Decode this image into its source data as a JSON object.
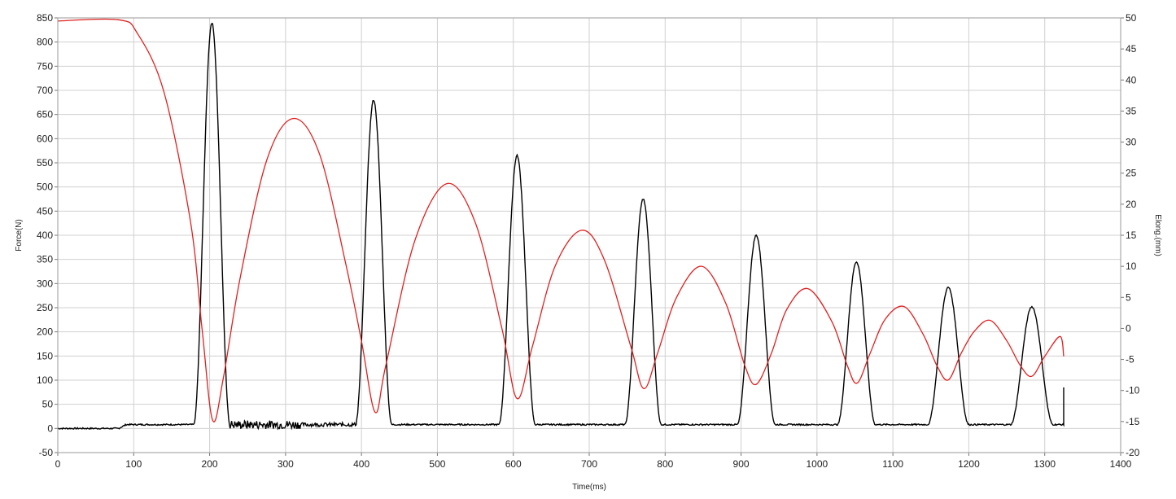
{
  "chart_data": {
    "type": "line",
    "title": "",
    "xlabel": "Time(ms)",
    "ylabel": "Force(N)",
    "y2label": "Elong.(mm)",
    "xlim": [
      0,
      1400
    ],
    "ylim": [
      -50,
      850
    ],
    "y2lim": [
      -20,
      50
    ],
    "grid": true,
    "legend": "none",
    "x_ticks": [
      "0",
      "100",
      "200",
      "300",
      "400",
      "500",
      "600",
      "700",
      "800",
      "900",
      "1000",
      "1100",
      "1200",
      "1300",
      "1400"
    ],
    "y_ticks": [
      "-50",
      "0",
      "50",
      "100",
      "150",
      "200",
      "250",
      "300",
      "350",
      "400",
      "450",
      "500",
      "550",
      "600",
      "650",
      "700",
      "750",
      "800",
      "850"
    ],
    "y2_ticks": [
      "-20",
      "-15",
      "-10",
      "-5",
      "0",
      "5",
      "10",
      "15",
      "20",
      "25",
      "30",
      "35",
      "40",
      "45",
      "50"
    ],
    "colors": {
      "force": "#000000",
      "elongation": "#e02020",
      "grid": "#d0d0d0"
    },
    "series": [
      {
        "name": "",
        "axis": "left",
        "color": "#000000",
        "baseline": [
          {
            "x": 0,
            "y": 0
          },
          {
            "x": 80,
            "y": 0
          },
          {
            "x": 90,
            "y": 8
          },
          {
            "x": 1330,
            "y": 8
          }
        ],
        "noise_range": [
          225,
          400
        ],
        "peaks": [
          {
            "x": 203,
            "y": 840,
            "halfwidth": 24
          },
          {
            "x": 416,
            "y": 680,
            "halfwidth": 24
          },
          {
            "x": 605,
            "y": 565,
            "halfwidth": 24
          },
          {
            "x": 771,
            "y": 475,
            "halfwidth": 24
          },
          {
            "x": 920,
            "y": 400,
            "halfwidth": 25
          },
          {
            "x": 1052,
            "y": 345,
            "halfwidth": 25
          },
          {
            "x": 1173,
            "y": 292,
            "halfwidth": 27
          },
          {
            "x": 1283,
            "y": 252,
            "halfwidth": 28
          }
        ],
        "end": {
          "x": 1325,
          "y": 85
        }
      },
      {
        "name": "",
        "axis": "right",
        "color": "#e02020",
        "points": [
          {
            "x": 0,
            "y": 49.5
          },
          {
            "x": 80,
            "y": 49.7
          },
          {
            "x": 105,
            "y": 47.5
          },
          {
            "x": 140,
            "y": 38
          },
          {
            "x": 175,
            "y": 17
          },
          {
            "x": 190,
            "y": 0
          },
          {
            "x": 204,
            "y": -14.8
          },
          {
            "x": 218,
            "y": -8
          },
          {
            "x": 240,
            "y": 8
          },
          {
            "x": 275,
            "y": 27
          },
          {
            "x": 310,
            "y": 33.8
          },
          {
            "x": 345,
            "y": 28
          },
          {
            "x": 380,
            "y": 10
          },
          {
            "x": 400,
            "y": -2
          },
          {
            "x": 418,
            "y": -13.5
          },
          {
            "x": 432,
            "y": -6
          },
          {
            "x": 470,
            "y": 14
          },
          {
            "x": 512,
            "y": 23.3
          },
          {
            "x": 550,
            "y": 17
          },
          {
            "x": 585,
            "y": 0
          },
          {
            "x": 605,
            "y": -11.3
          },
          {
            "x": 625,
            "y": -3
          },
          {
            "x": 655,
            "y": 10
          },
          {
            "x": 690,
            "y": 15.8
          },
          {
            "x": 720,
            "y": 11
          },
          {
            "x": 755,
            "y": -3
          },
          {
            "x": 772,
            "y": -9.7
          },
          {
            "x": 790,
            "y": -4
          },
          {
            "x": 815,
            "y": 5
          },
          {
            "x": 848,
            "y": 10
          },
          {
            "x": 880,
            "y": 4
          },
          {
            "x": 905,
            "y": -6
          },
          {
            "x": 920,
            "y": -9
          },
          {
            "x": 940,
            "y": -4
          },
          {
            "x": 960,
            "y": 3
          },
          {
            "x": 988,
            "y": 6.4
          },
          {
            "x": 1020,
            "y": 1
          },
          {
            "x": 1040,
            "y": -6
          },
          {
            "x": 1053,
            "y": -8.8
          },
          {
            "x": 1070,
            "y": -4
          },
          {
            "x": 1090,
            "y": 1.5
          },
          {
            "x": 1115,
            "y": 3.5
          },
          {
            "x": 1140,
            "y": -1
          },
          {
            "x": 1158,
            "y": -6
          },
          {
            "x": 1173,
            "y": -8.3
          },
          {
            "x": 1190,
            "y": -4
          },
          {
            "x": 1207,
            "y": -0.5
          },
          {
            "x": 1228,
            "y": 1.3
          },
          {
            "x": 1250,
            "y": -2
          },
          {
            "x": 1268,
            "y": -6
          },
          {
            "x": 1283,
            "y": -7.7
          },
          {
            "x": 1300,
            "y": -4.5
          },
          {
            "x": 1320,
            "y": -1.3
          },
          {
            "x": 1325,
            "y": -4.5
          }
        ]
      }
    ]
  }
}
